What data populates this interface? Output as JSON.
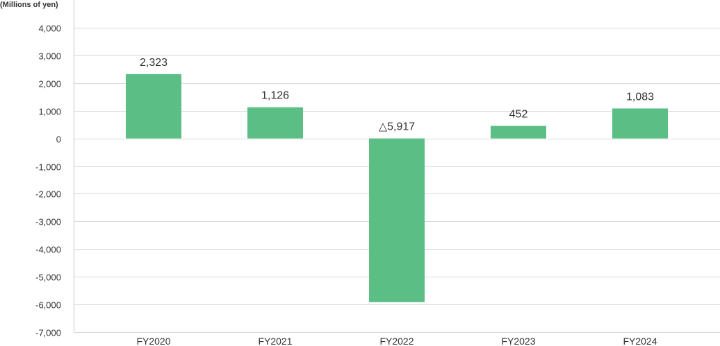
{
  "chart_data": {
    "type": "bar",
    "unit_label": "(Millions of yen)",
    "categories": [
      "FY2020",
      "FY2021",
      "FY2022",
      "FY2023",
      "FY2024"
    ],
    "values": [
      2323,
      1126,
      -5917,
      452,
      1083
    ],
    "data_labels": [
      "2,323",
      "1,126",
      "△5,917",
      "452",
      "1,083"
    ],
    "ylim": [
      -7000,
      4000
    ],
    "yticks": [
      4000,
      3000,
      2000,
      1000,
      0,
      -1000,
      -2000,
      -3000,
      -4000,
      -5000,
      -6000,
      -7000
    ],
    "ytick_labels": [
      "4,000",
      "3,000",
      "2,000",
      "1,000",
      "0",
      "-1,000",
      "-2,000",
      "-3,000",
      "-4,000",
      "-5,000",
      "-6,000",
      "-7,000"
    ],
    "grid": true,
    "bar_color": "#5bbf85"
  }
}
